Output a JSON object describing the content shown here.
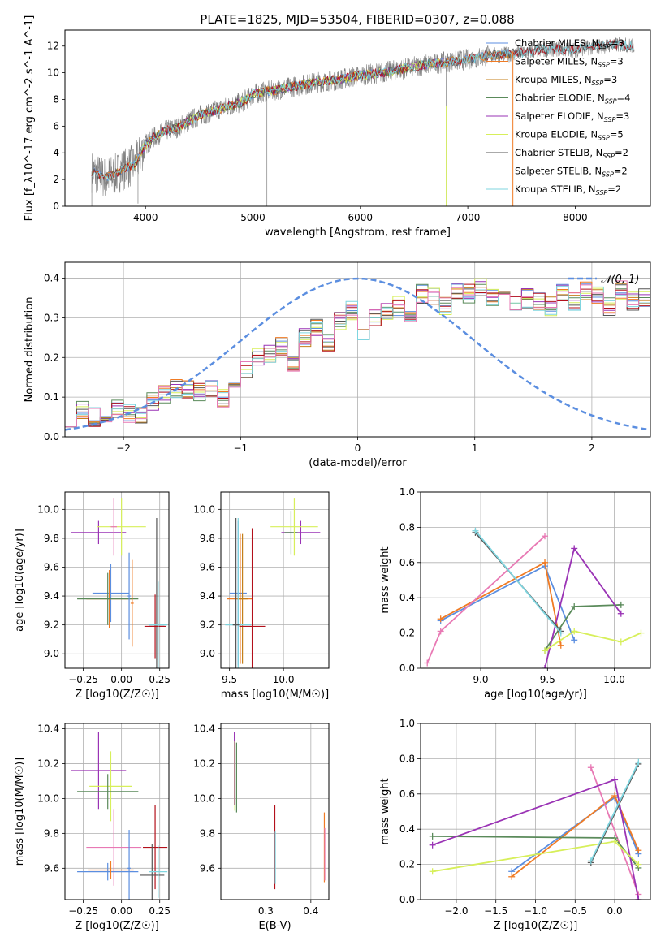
{
  "title": "PLATE=1825, MJD=53504, FIBERID=0307, z=0.088",
  "colors": {
    "Chabrier MILES": "#5b8ee0",
    "Salpeter MILES": "#f07b24",
    "Kroupa MILES": "#c47f1a",
    "Chabrier ELODIE": "#5a8a5a",
    "Salpeter ELODIE": "#9a33b5",
    "Kroupa ELODIE": "#d7ef5a",
    "Chabrier STELIB": "#555555",
    "Salpeter STELIB": "#b3101b",
    "Kroupa STELIB": "#7fd5df",
    "pink": "#e879b4",
    "data": "#808080",
    "normal": "#5b8ee0"
  },
  "chart_data": [
    {
      "id": "spectrum",
      "type": "line",
      "xlabel": "wavelength [Angstrom, rest frame]",
      "ylabel": "Flux [f_λ10^-17 erg cm^-2 s^-1 A^-1]",
      "xlim": [
        3250,
        8700
      ],
      "ylim": [
        0,
        13.2
      ],
      "xticks": [
        4000,
        5000,
        6000,
        7000,
        8000
      ],
      "yticks": [
        0,
        2,
        4,
        6,
        8,
        10,
        12
      ],
      "legend": [
        {
          "label": "Chabrier MILES, N",
          "sub": "SSP",
          "suffix": "=3",
          "color": "Chabrier MILES"
        },
        {
          "label": "Salpeter MILES, N",
          "sub": "SSP",
          "suffix": "=3",
          "color": "Salpeter MILES"
        },
        {
          "label": "Kroupa MILES, N",
          "sub": "SSP",
          "suffix": "=3",
          "color": "Kroupa MILES"
        },
        {
          "label": "Chabrier ELODIE, N",
          "sub": "SSP",
          "suffix": "=4",
          "color": "Chabrier ELODIE"
        },
        {
          "label": "Salpeter ELODIE, N",
          "sub": "SSP",
          "suffix": "=3",
          "color": "Salpeter ELODIE"
        },
        {
          "label": "Kroupa ELODIE, N",
          "sub": "SSP",
          "suffix": "=5",
          "color": "Kroupa ELODIE"
        },
        {
          "label": "Chabrier STELIB, N",
          "sub": "SSP",
          "suffix": "=2",
          "color": "Chabrier STELIB"
        },
        {
          "label": "Salpeter STELIB, N",
          "sub": "SSP",
          "suffix": "=2",
          "color": "Salpeter STELIB"
        },
        {
          "label": "Kroupa STELIB, N",
          "sub": "SSP",
          "suffix": "=2",
          "color": "Kroupa STELIB"
        }
      ],
      "continuum": [
        [
          3500,
          2.6
        ],
        [
          3600,
          2.2
        ],
        [
          3700,
          2.3
        ],
        [
          3800,
          2.8
        ],
        [
          3900,
          3.1
        ],
        [
          4000,
          4.6
        ],
        [
          4100,
          5.3
        ],
        [
          4200,
          5.7
        ],
        [
          4300,
          5.9
        ],
        [
          4500,
          6.8
        ],
        [
          4700,
          7.3
        ],
        [
          4900,
          7.8
        ],
        [
          5000,
          8.4
        ],
        [
          5200,
          8.7
        ],
        [
          5400,
          9.0
        ],
        [
          5600,
          9.3
        ],
        [
          5800,
          9.5
        ],
        [
          6000,
          9.8
        ],
        [
          6200,
          10.0
        ],
        [
          6400,
          10.3
        ],
        [
          6600,
          10.6
        ],
        [
          6800,
          10.8
        ],
        [
          7000,
          11.0
        ],
        [
          7200,
          11.3
        ],
        [
          7400,
          11.4
        ],
        [
          7600,
          11.6
        ],
        [
          7800,
          11.8
        ],
        [
          8000,
          11.7
        ],
        [
          8200,
          12.0
        ],
        [
          8400,
          12.1
        ],
        [
          8550,
          12.0
        ]
      ],
      "model_ranges": {
        "MILES": [
          3500,
          7420
        ],
        "ELODIE": [
          3900,
          6800
        ],
        "STELIB": [
          3500,
          8550
        ]
      }
    },
    {
      "id": "residuals",
      "type": "bar",
      "xlabel": "(data-model)/error",
      "ylabel": "Normed distribution",
      "xlim": [
        -2.5,
        2.5
      ],
      "ylim": [
        0,
        0.44
      ],
      "xticks": [
        -2,
        -1,
        0,
        1,
        2
      ],
      "yticks": [
        0.0,
        0.1,
        0.2,
        0.3,
        0.4
      ],
      "legend": "𝒩(0, 1)",
      "bin_width": 0.1,
      "bin_start": -2.5,
      "mean_hist": [
        0.05,
        0.07,
        0.05,
        0.06,
        0.07,
        0.06,
        0.05,
        0.09,
        0.11,
        0.12,
        0.12,
        0.11,
        0.12,
        0.1,
        0.14,
        0.17,
        0.2,
        0.21,
        0.23,
        0.19,
        0.25,
        0.28,
        0.24,
        0.29,
        0.32,
        0.26,
        0.3,
        0.32,
        0.33,
        0.3,
        0.36,
        0.35,
        0.33,
        0.37,
        0.36,
        0.38,
        0.35,
        0.37,
        0.34,
        0.35,
        0.34,
        0.33,
        0.36,
        0.34,
        0.37,
        0.36,
        0.33,
        0.37,
        0.34,
        0.35,
        0.34,
        0.37,
        0.31,
        0.33,
        0.34,
        0.3,
        0.29,
        0.27,
        0.28,
        0.27,
        0.28,
        0.24,
        0.26,
        0.26,
        0.2,
        0.22,
        0.2,
        0.19,
        0.18,
        0.16,
        0.15,
        0.13,
        0.12,
        0.11,
        0.11,
        0.09,
        0.09,
        0.12,
        0.1,
        0.07,
        0.06,
        0.07,
        0.06,
        0.05,
        0.05,
        0.04,
        0.04,
        0.03,
        0.04,
        0.04,
        0.04,
        0.03,
        0.03,
        0.04,
        0.04,
        0.03,
        0.04,
        0.03,
        0.04,
        0.04
      ]
    },
    {
      "id": "z-age",
      "type": "scatter",
      "xlabel": "Z [log10(Z/Z☉)]",
      "ylabel": "age [log10(age/yr)]",
      "xlim": [
        -0.37,
        0.31
      ],
      "ylim": [
        8.9,
        10.12
      ],
      "xticks": [
        -0.25,
        0.0,
        0.25
      ],
      "yticks": [
        9.0,
        9.2,
        9.4,
        9.6,
        9.8,
        10.0
      ],
      "points": [
        {
          "x": -0.15,
          "y": 9.84,
          "xe": 0.18,
          "ye": 0.08,
          "color": "Salpeter ELODIE"
        },
        {
          "x": 0.0,
          "y": 9.88,
          "xe": 0.16,
          "ye": 0.2,
          "color": "Kroupa ELODIE"
        },
        {
          "x": -0.05,
          "y": 9.88,
          "xe": 0.02,
          "ye": 0.2,
          "color": "pink"
        },
        {
          "x": -0.07,
          "y": 9.42,
          "xe": 0.12,
          "ye": 0.2,
          "color": "Chabrier MILES"
        },
        {
          "x": -0.08,
          "y": 9.38,
          "xe": 0.15,
          "ye": 0.2,
          "color": "Salpeter MILES"
        },
        {
          "x": -0.09,
          "y": 9.38,
          "xe": 0.2,
          "ye": 0.18,
          "color": "Chabrier ELODIE"
        },
        {
          "x": 0.05,
          "y": 9.4,
          "xe": 0.01,
          "ye": 0.3,
          "color": "Chabrier MILES"
        },
        {
          "x": 0.07,
          "y": 9.35,
          "xe": 0.01,
          "ye": 0.3,
          "color": "Salpeter MILES"
        },
        {
          "x": 0.23,
          "y": 9.2,
          "xe": 0.05,
          "ye": 0.74,
          "color": "Chabrier STELIB"
        },
        {
          "x": 0.22,
          "y": 9.19,
          "xe": 0.07,
          "ye": 0.22,
          "color": "Salpeter STELIB"
        },
        {
          "x": 0.24,
          "y": 9.2,
          "xe": 0.06,
          "ye": 0.3,
          "color": "Kroupa STELIB"
        }
      ]
    },
    {
      "id": "mass-age",
      "type": "scatter",
      "xlabel": "mass [log10(M/M☉)]",
      "ylabel": "",
      "xlim": [
        9.42,
        10.42
      ],
      "ylim": [
        8.9,
        10.12
      ],
      "xticks": [
        9.5,
        10.0
      ],
      "yticks": [
        9.0,
        9.2,
        9.4,
        9.6,
        9.8,
        10.0
      ],
      "points": [
        {
          "x": 10.16,
          "y": 9.84,
          "xe": 0.18,
          "ye": 0.08,
          "color": "Salpeter ELODIE"
        },
        {
          "x": 10.07,
          "y": 9.84,
          "xe": 0.06,
          "ye": 0.15,
          "color": "Chabrier ELODIE"
        },
        {
          "x": 10.1,
          "y": 9.88,
          "xe": 0.22,
          "ye": 0.2,
          "color": "Kroupa ELODIE"
        },
        {
          "x": 9.58,
          "y": 9.42,
          "xe": 0.08,
          "ye": 0.5,
          "color": "Chabrier MILES"
        },
        {
          "x": 9.6,
          "y": 9.38,
          "xe": 0.12,
          "ye": 0.45,
          "color": "Salpeter MILES"
        },
        {
          "x": 9.62,
          "y": 9.38,
          "xe": 0.05,
          "ye": 0.45,
          "color": "Kroupa MILES"
        },
        {
          "x": 9.71,
          "y": 9.19,
          "xe": 0.12,
          "ye": 0.68,
          "color": "Salpeter STELIB"
        },
        {
          "x": 9.58,
          "y": 9.2,
          "xe": 0.12,
          "ye": 0.74,
          "color": "Kroupa STELIB"
        },
        {
          "x": 9.56,
          "y": 9.2,
          "xe": 0.03,
          "ye": 0.74,
          "color": "Chabrier STELIB"
        }
      ]
    },
    {
      "id": "age-weight",
      "type": "line",
      "xlabel": "age [log10(age/yr)]",
      "ylabel": "mass weight",
      "xlim": [
        8.55,
        10.27
      ],
      "ylim": [
        0,
        1
      ],
      "xticks": [
        9.0,
        9.5,
        10.0
      ],
      "yticks": [
        0.0,
        0.2,
        0.4,
        0.6,
        0.8,
        1.0
      ],
      "series": [
        {
          "color": "Chabrier MILES",
          "x": [
            8.7,
            9.48,
            9.7
          ],
          "y": [
            0.27,
            0.58,
            0.16
          ]
        },
        {
          "color": "Salpeter MILES",
          "x": [
            8.7,
            9.48,
            9.6
          ],
          "y": [
            0.28,
            0.6,
            0.13
          ]
        },
        {
          "color": "pink",
          "x": [
            8.6,
            8.7,
            9.48
          ],
          "y": [
            0.03,
            0.21,
            0.75
          ]
        },
        {
          "color": "Chabrier ELODIE",
          "x": [
            9.48,
            9.7,
            10.05
          ],
          "y": [
            0.1,
            0.35,
            0.36
          ]
        },
        {
          "color": "Salpeter ELODIE",
          "x": [
            9.48,
            9.7,
            10.05
          ],
          "y": [
            0.0,
            0.68,
            0.31
          ]
        },
        {
          "color": "Kroupa ELODIE",
          "x": [
            9.48,
            9.7,
            10.05,
            10.2
          ],
          "y": [
            0.1,
            0.21,
            0.15,
            0.2
          ]
        },
        {
          "color": "Chabrier STELIB",
          "x": [
            8.96,
            9.6
          ],
          "y": [
            0.77,
            0.21
          ]
        },
        {
          "color": "Kroupa STELIB",
          "x": [
            8.96,
            9.6
          ],
          "y": [
            0.78,
            0.2
          ]
        }
      ]
    },
    {
      "id": "z-mass",
      "type": "scatter",
      "xlabel": "Z [log10(Z/Z☉)]",
      "ylabel": "mass [log10(M/M☉)]",
      "xlim": [
        -0.37,
        0.31
      ],
      "ylim": [
        9.42,
        10.43
      ],
      "xticks": [
        -0.25,
        0.0,
        0.25
      ],
      "yticks": [
        9.6,
        9.8,
        10.0,
        10.2,
        10.4
      ],
      "points": [
        {
          "x": -0.15,
          "y": 10.16,
          "xe": 0.18,
          "ye": 0.22,
          "color": "Salpeter ELODIE"
        },
        {
          "x": -0.07,
          "y": 10.07,
          "xe": 0.14,
          "ye": 0.2,
          "color": "Kroupa ELODIE"
        },
        {
          "x": -0.09,
          "y": 10.04,
          "xe": 0.2,
          "ye": 0.1,
          "color": "Chabrier ELODIE"
        },
        {
          "x": -0.05,
          "y": 9.72,
          "xe": 0.18,
          "ye": 0.22,
          "color": "pink"
        },
        {
          "x": 0.22,
          "y": 9.72,
          "xe": 0.08,
          "ye": 0.24,
          "color": "Salpeter STELIB"
        },
        {
          "x": -0.09,
          "y": 9.58,
          "xe": 0.2,
          "ye": 0.05,
          "color": "Chabrier MILES"
        },
        {
          "x": -0.07,
          "y": 9.59,
          "xe": 0.15,
          "ye": 0.05,
          "color": "Salpeter MILES"
        },
        {
          "x": 0.05,
          "y": 9.6,
          "xe": 0.01,
          "ye": 0.22,
          "color": "Chabrier MILES"
        },
        {
          "x": 0.2,
          "y": 9.56,
          "xe": 0.08,
          "ye": 0.18,
          "color": "Chabrier STELIB"
        },
        {
          "x": 0.24,
          "y": 9.58,
          "xe": 0.06,
          "ye": 0.15,
          "color": "Kroupa STELIB"
        }
      ]
    },
    {
      "id": "ebv-mass",
      "type": "scatter",
      "xlabel": "E(B-V)",
      "ylabel": "",
      "xlim": [
        0.2,
        0.44
      ],
      "ylim": [
        9.42,
        10.43
      ],
      "xticks": [
        0.3,
        0.4
      ],
      "yticks": [
        9.6,
        9.8,
        10.0,
        10.2,
        10.4
      ],
      "points": [
        {
          "x": 0.23,
          "y": 10.17,
          "xe": 0.0,
          "ye": 0.21,
          "color": "Salpeter ELODIE"
        },
        {
          "x": 0.231,
          "y": 10.13,
          "xe": 0.0,
          "ye": 0.2,
          "color": "Kroupa ELODIE"
        },
        {
          "x": 0.235,
          "y": 10.12,
          "xe": 0.0,
          "ye": 0.2,
          "color": "Chabrier ELODIE"
        },
        {
          "x": 0.32,
          "y": 9.72,
          "xe": 0.0,
          "ye": 0.24,
          "color": "Salpeter STELIB"
        },
        {
          "x": 0.321,
          "y": 9.66,
          "xe": 0.0,
          "ye": 0.15,
          "color": "Kroupa STELIB"
        },
        {
          "x": 0.43,
          "y": 9.72,
          "xe": 0.0,
          "ye": 0.2,
          "color": "Salpeter MILES"
        },
        {
          "x": 0.431,
          "y": 9.68,
          "xe": 0.0,
          "ye": 0.15,
          "color": "pink"
        }
      ]
    },
    {
      "id": "z-weight",
      "type": "line",
      "xlabel": "Z [log10(Z/Z☉)]",
      "ylabel": "mass weight",
      "xlim": [
        -2.45,
        0.45
      ],
      "ylim": [
        0,
        1
      ],
      "xticks": [
        -2.0,
        -1.5,
        -1.0,
        -0.5,
        0.0
      ],
      "yticks": [
        0.0,
        0.2,
        0.4,
        0.6,
        0.8,
        1.0
      ],
      "series": [
        {
          "color": "Chabrier MILES",
          "x": [
            -1.3,
            0.0,
            0.3
          ],
          "y": [
            0.16,
            0.58,
            0.26
          ]
        },
        {
          "color": "Salpeter MILES",
          "x": [
            -1.3,
            0.0,
            0.3
          ],
          "y": [
            0.13,
            0.59,
            0.28
          ]
        },
        {
          "color": "pink",
          "x": [
            -0.3,
            0.3
          ],
          "y": [
            0.75,
            0.03
          ]
        },
        {
          "color": "Chabrier ELODIE",
          "x": [
            -2.3,
            0.0,
            0.3
          ],
          "y": [
            0.36,
            0.35,
            0.18
          ]
        },
        {
          "color": "Salpeter ELODIE",
          "x": [
            -2.3,
            0.0,
            0.3
          ],
          "y": [
            0.31,
            0.68,
            0.0
          ]
        },
        {
          "color": "Kroupa ELODIE",
          "x": [
            -2.3,
            0.0,
            0.3
          ],
          "y": [
            0.16,
            0.33,
            0.2
          ]
        },
        {
          "color": "Chabrier STELIB",
          "x": [
            -0.3,
            0.3
          ],
          "y": [
            0.21,
            0.77
          ]
        },
        {
          "color": "Kroupa STELIB",
          "x": [
            -0.3,
            0.3
          ],
          "y": [
            0.22,
            0.78
          ]
        }
      ]
    }
  ]
}
